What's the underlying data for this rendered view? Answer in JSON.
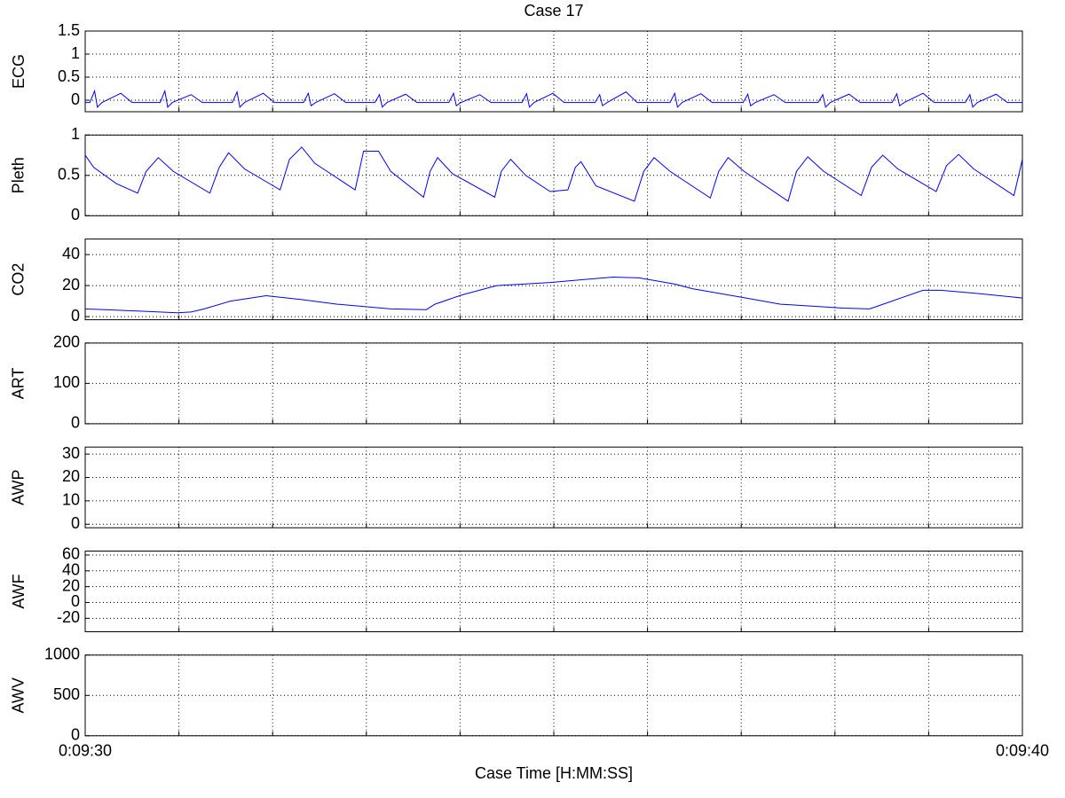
{
  "chart_data": [
    {
      "type": "line",
      "title": "Case 17",
      "ylabel": "ECG",
      "ylim": [
        -0.25,
        1.5
      ],
      "yticks": [
        0,
        0.5,
        1,
        1.5
      ],
      "grid": true,
      "xlim": [
        570,
        580
      ],
      "xticks": [
        570,
        571,
        572,
        573,
        574,
        575,
        576,
        577,
        578,
        579,
        580
      ],
      "x": [
        570.0,
        570.05,
        570.1,
        570.13,
        570.18,
        570.38,
        570.5,
        570.8,
        570.85,
        570.88,
        570.93,
        571.13,
        571.25,
        571.57,
        571.62,
        571.65,
        571.7,
        571.9,
        572.02,
        572.33,
        572.38,
        572.41,
        572.46,
        572.66,
        572.78,
        573.09,
        573.14,
        573.17,
        573.22,
        573.42,
        573.54,
        573.88,
        573.93,
        573.96,
        574.01,
        574.21,
        574.33,
        574.66,
        574.71,
        574.74,
        574.79,
        574.99,
        575.11,
        575.44,
        575.49,
        575.52,
        575.57,
        575.77,
        575.89,
        576.24,
        576.29,
        576.32,
        576.37,
        576.57,
        576.69,
        577.02,
        577.07,
        577.1,
        577.15,
        577.35,
        577.47,
        577.82,
        577.87,
        577.9,
        577.95,
        578.15,
        578.27,
        578.61,
        578.66,
        578.69,
        578.74,
        578.94,
        579.06,
        579.39,
        579.44,
        579.47,
        579.52,
        579.72,
        579.84,
        580.0
      ],
      "series": [
        {
          "color": "#0000ff",
          "values": [
            -0.05,
            -0.05,
            0.2,
            -0.15,
            -0.05,
            0.15,
            -0.05,
            -0.05,
            0.2,
            -0.15,
            -0.05,
            0.12,
            -0.05,
            -0.05,
            0.18,
            -0.15,
            -0.05,
            0.15,
            -0.05,
            -0.05,
            0.15,
            -0.12,
            -0.05,
            0.14,
            -0.05,
            -0.05,
            0.12,
            -0.15,
            -0.05,
            0.13,
            -0.05,
            -0.05,
            0.15,
            -0.12,
            -0.05,
            0.12,
            -0.05,
            -0.05,
            0.14,
            -0.15,
            -0.05,
            0.15,
            -0.05,
            -0.05,
            0.12,
            -0.12,
            -0.05,
            0.18,
            -0.05,
            -0.05,
            0.15,
            -0.15,
            -0.05,
            0.14,
            -0.05,
            -0.05,
            0.13,
            -0.12,
            -0.05,
            0.12,
            -0.05,
            -0.05,
            0.12,
            -0.15,
            -0.05,
            0.13,
            -0.05,
            -0.05,
            0.14,
            -0.12,
            -0.05,
            0.15,
            -0.05,
            -0.05,
            0.12,
            -0.15,
            -0.05,
            0.13,
            -0.05,
            -0.05
          ]
        }
      ]
    },
    {
      "type": "line",
      "ylabel": "Pleth",
      "ylim": [
        0,
        1
      ],
      "yticks": [
        0,
        0.5,
        1
      ],
      "grid": true,
      "xlim": [
        570,
        580
      ],
      "xticks": [
        570,
        571,
        572,
        573,
        574,
        575,
        576,
        577,
        578,
        579,
        580
      ],
      "x": [
        570.0,
        570.09,
        570.33,
        570.56,
        570.65,
        570.78,
        570.94,
        571.33,
        571.43,
        571.53,
        571.7,
        572.08,
        572.18,
        572.31,
        572.45,
        572.88,
        572.97,
        573.13,
        573.26,
        573.61,
        573.68,
        573.76,
        573.92,
        574.37,
        574.44,
        574.54,
        574.7,
        574.96,
        575.15,
        575.23,
        575.29,
        575.45,
        575.86,
        575.96,
        576.07,
        576.24,
        576.67,
        576.76,
        576.86,
        577.03,
        577.5,
        577.59,
        577.71,
        577.88,
        578.28,
        578.39,
        578.51,
        578.67,
        579.08,
        579.19,
        579.32,
        579.48,
        579.91,
        580.0
      ],
      "series": [
        {
          "color": "#0000ff",
          "values": [
            0.75,
            0.6,
            0.4,
            0.28,
            0.55,
            0.72,
            0.55,
            0.28,
            0.6,
            0.78,
            0.58,
            0.32,
            0.7,
            0.85,
            0.65,
            0.32,
            0.8,
            0.8,
            0.55,
            0.23,
            0.55,
            0.72,
            0.52,
            0.23,
            0.55,
            0.7,
            0.5,
            0.3,
            0.32,
            0.6,
            0.67,
            0.37,
            0.18,
            0.55,
            0.72,
            0.55,
            0.22,
            0.55,
            0.72,
            0.55,
            0.18,
            0.55,
            0.73,
            0.55,
            0.25,
            0.6,
            0.75,
            0.58,
            0.3,
            0.62,
            0.76,
            0.58,
            0.25,
            0.7
          ]
        }
      ]
    },
    {
      "type": "line",
      "ylabel": "CO2",
      "ylim": [
        -2,
        50
      ],
      "yticks": [
        0,
        20,
        40
      ],
      "grid": true,
      "xlim": [
        570,
        580
      ],
      "xticks": [
        570,
        571,
        572,
        573,
        574,
        575,
        576,
        577,
        578,
        579,
        580
      ],
      "x": [
        570.0,
        570.61,
        570.98,
        571.13,
        571.27,
        571.55,
        571.93,
        572.31,
        572.69,
        573.26,
        573.64,
        573.73,
        574.02,
        574.39,
        574.96,
        575.63,
        575.91,
        576.29,
        576.48,
        577.05,
        577.42,
        578.09,
        578.37,
        578.56,
        578.94,
        579.13,
        579.51,
        580.0
      ],
      "series": [
        {
          "color": "#0000ff",
          "values": [
            5,
            3.5,
            2.5,
            3,
            5,
            10,
            13.5,
            11,
            8,
            5,
            4.5,
            8,
            14,
            20,
            22,
            25.5,
            25,
            21,
            18,
            12,
            8,
            5.5,
            5,
            9,
            17,
            17,
            15,
            12
          ]
        }
      ]
    },
    {
      "type": "line",
      "ylabel": "ART",
      "ylim": [
        0,
        200
      ],
      "yticks": [
        0,
        100,
        200
      ],
      "grid": true,
      "xlim": [
        570,
        580
      ],
      "xticks": [
        570,
        571,
        572,
        573,
        574,
        575,
        576,
        577,
        578,
        579,
        580
      ]
    },
    {
      "type": "line",
      "ylabel": "AWP",
      "ylim": [
        -1.5,
        33
      ],
      "yticks": [
        0,
        10,
        20,
        30
      ],
      "grid": true,
      "xlim": [
        570,
        580
      ],
      "xticks": [
        570,
        571,
        572,
        573,
        574,
        575,
        576,
        577,
        578,
        579,
        580
      ]
    },
    {
      "type": "line",
      "ylabel": "AWF",
      "ylim": [
        -37,
        65
      ],
      "yticks": [
        -20,
        0,
        20,
        40,
        60
      ],
      "grid": true,
      "xlim": [
        570,
        580
      ],
      "xticks": [
        570,
        571,
        572,
        573,
        574,
        575,
        576,
        577,
        578,
        579,
        580
      ]
    },
    {
      "type": "line",
      "ylabel": "AWV",
      "xlabel": "Case Time [H:MM:SS]",
      "ylim": [
        0,
        1000
      ],
      "yticks": [
        0,
        500,
        1000
      ],
      "grid": true,
      "xlim": [
        570,
        580
      ],
      "xticks": [
        {
          "value": 570,
          "label": "0:09:30"
        },
        571,
        572,
        573,
        574,
        575,
        576,
        577,
        578,
        579,
        {
          "value": 580,
          "label": "0:09:40"
        }
      ]
    }
  ]
}
